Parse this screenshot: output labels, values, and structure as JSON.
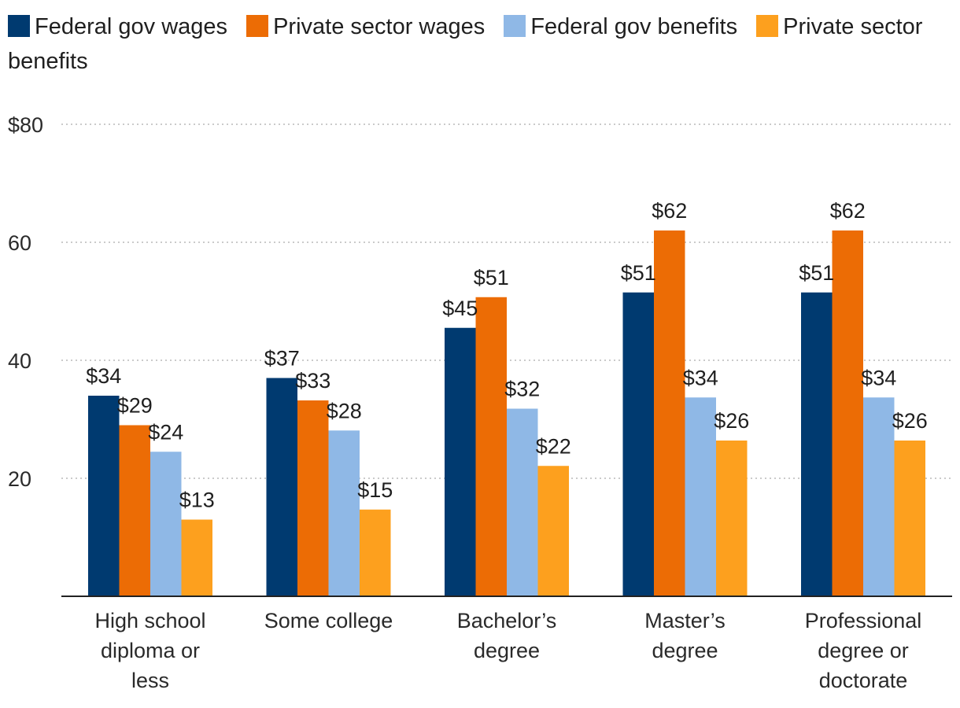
{
  "chart_data": {
    "type": "bar",
    "title": "",
    "xlabel": "",
    "ylabel": "",
    "ylim": [
      0,
      80
    ],
    "yticks": [
      "",
      "20",
      "40",
      "60",
      "$80"
    ],
    "ytick_values": [
      0,
      20,
      40,
      60,
      80
    ],
    "grid": true,
    "legend_position": "top-left",
    "categories": [
      [
        "High school",
        "diploma or",
        "less"
      ],
      [
        "Some college"
      ],
      [
        "Bachelor’s",
        "degree"
      ],
      [
        "Master’s",
        "degree"
      ],
      [
        "Professional",
        "degree or",
        "doctorate"
      ]
    ],
    "series": [
      {
        "name": "Federal gov wages",
        "color": "#003a70",
        "values": [
          34,
          37,
          45.5,
          51.5,
          51.5
        ],
        "labels": [
          "$34",
          "$37",
          "$45",
          "$51",
          "$51"
        ]
      },
      {
        "name": "Private sector wages",
        "color": "#ec6c05",
        "values": [
          29,
          33.2,
          50.7,
          62,
          62
        ],
        "labels": [
          "$29",
          "$33",
          "$51",
          "$62",
          "$62"
        ]
      },
      {
        "name": "Federal gov benefits",
        "color": "#8fb8e6",
        "values": [
          24.5,
          28.1,
          31.8,
          33.7,
          33.7
        ],
        "labels": [
          "$24",
          "$28",
          "$32",
          "$34",
          "$34"
        ]
      },
      {
        "name": "Private sector benefits",
        "color": "#fda01e",
        "values": [
          13,
          14.7,
          22.1,
          26.4,
          26.4
        ],
        "labels": [
          "$13",
          "$15",
          "$22",
          "$26",
          "$26"
        ]
      }
    ]
  }
}
